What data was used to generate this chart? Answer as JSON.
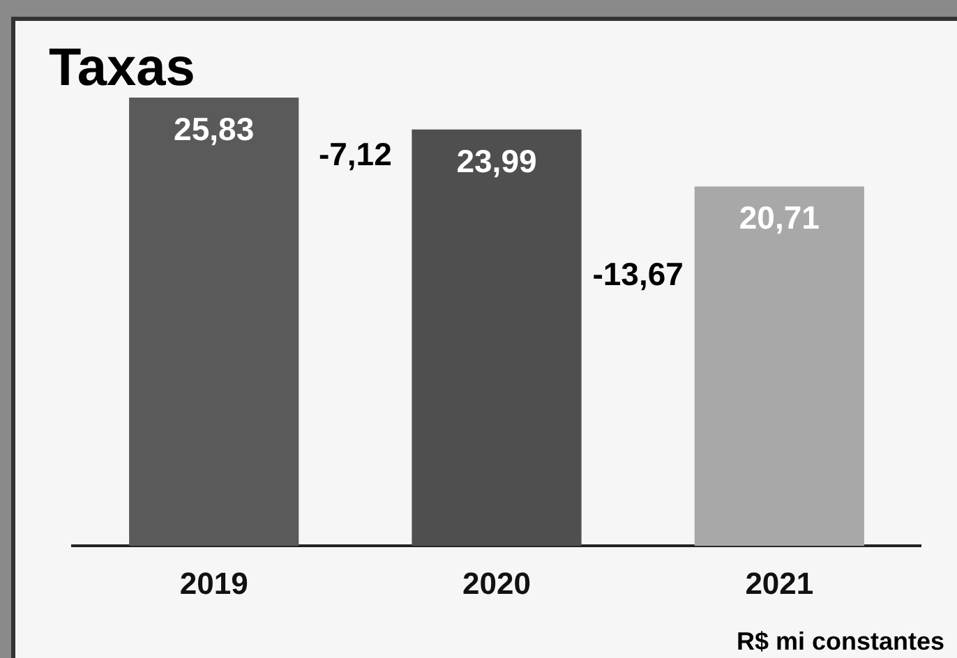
{
  "chart_data": {
    "type": "bar",
    "title": "Taxas",
    "categories": [
      "2019",
      "2020",
      "2021"
    ],
    "values": [
      25.83,
      23.99,
      20.71
    ],
    "colors": [
      "#5a5a5a",
      "#4f4f4f",
      "#a8a8a8"
    ],
    "value_labels": [
      "25,83",
      "23,99",
      "20,71"
    ],
    "annotations": [
      "-7,12",
      "-13,67",
      "R$ mi constantes"
    ]
  }
}
